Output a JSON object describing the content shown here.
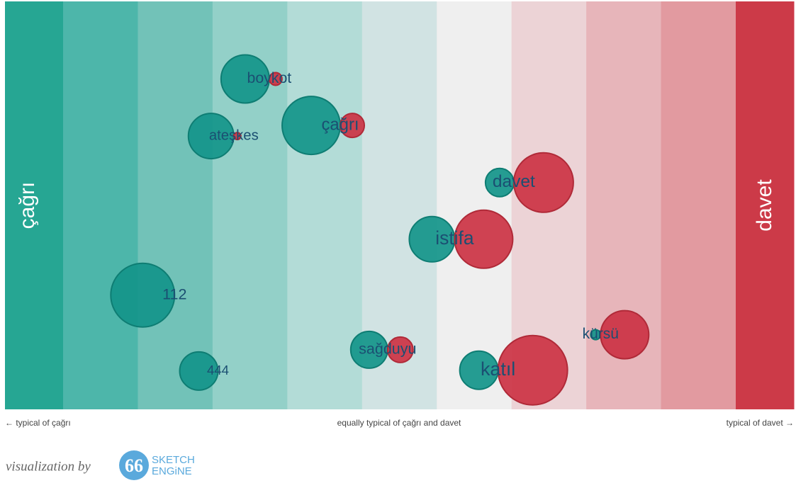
{
  "chart_data": {
    "type": "bubble",
    "xlim": [
      -1,
      1
    ],
    "ylim": [
      0,
      100
    ],
    "band_colors": [
      "#26a693",
      "#4db6aa",
      "#72c2b8",
      "#93d0c8",
      "#b3dcd7",
      "#d1e3e3",
      "#efefef",
      "#ecd3d6",
      "#e7b5ba",
      "#e29aa0",
      "#cc3a48"
    ],
    "series": [
      {
        "name": "çağrı",
        "color": "#13958a"
      },
      {
        "name": "davet",
        "color": "#cc3344"
      }
    ],
    "words": [
      {
        "label": "boykot",
        "x": -0.33,
        "y": 19,
        "size_1": 34,
        "size_2": 9
      },
      {
        "label": "ateşkes",
        "x": -0.42,
        "y": 33,
        "size_1": 32,
        "size_2": 5
      },
      {
        "label": "çağrı",
        "x": -0.15,
        "y": 30.4,
        "size_1": 41,
        "size_2": 17
      },
      {
        "label": "davet",
        "x": 0.29,
        "y": 44.4,
        "size_1": 20,
        "size_2": 42
      },
      {
        "label": "istifa",
        "x": 0.14,
        "y": 58.3,
        "size_1": 32,
        "size_2": 41
      },
      {
        "label": "112",
        "x": -0.57,
        "y": 72,
        "size_1": 45,
        "size_2": 0
      },
      {
        "label": "444",
        "x": -0.46,
        "y": 90.6,
        "size_1": 27,
        "size_2": 0
      },
      {
        "label": "sağduyu",
        "x": -0.03,
        "y": 85.4,
        "size_1": 26,
        "size_2": 18
      },
      {
        "label": "katıl",
        "x": 0.25,
        "y": 90.4,
        "size_1": 27,
        "size_2": 49
      },
      {
        "label": "kürsü",
        "x": 0.51,
        "y": 81.7,
        "size_1": 7,
        "size_2": 34
      }
    ],
    "axis_labels": {
      "left": "← typical of çağrı",
      "center": "equally typical of çağrı and davet",
      "right": "typical of davet →"
    }
  },
  "footer": {
    "text": "visualization by",
    "logo_line1": "SKETCH",
    "logo_line2": "ENGiNE"
  }
}
